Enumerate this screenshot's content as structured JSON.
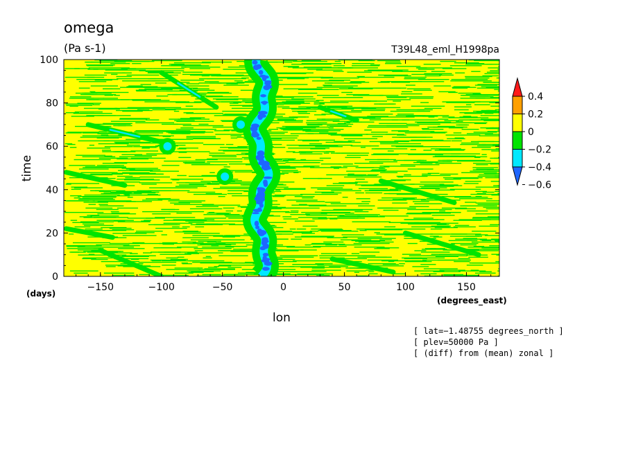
{
  "chart_data": {
    "type": "heatmap",
    "title": "omega",
    "units": "(Pa s-1)",
    "experiment": "T39L48_eml_H1998pa",
    "xlabel": "lon",
    "ylabel": "time",
    "x_units": "(degrees_east)",
    "y_units": "(days)",
    "xlim": [
      -180,
      177
    ],
    "ylim": [
      0,
      100
    ],
    "x_ticks": [
      -150,
      -100,
      -50,
      0,
      50,
      100,
      150
    ],
    "x_tick_labels": [
      "−150",
      "−100",
      "−50",
      "0",
      "50",
      "100",
      "150"
    ],
    "y_ticks": [
      0,
      20,
      40,
      60,
      80,
      100
    ],
    "y_tick_labels": [
      "0",
      "20",
      "40",
      "60",
      "80",
      "100"
    ],
    "colorbar": {
      "levels": [
        -0.6,
        -0.4,
        -0.2,
        0,
        0.2,
        0.4
      ],
      "labels": [
        "−0.6",
        "−0.4",
        "−0.2",
        "0",
        "0.2",
        "0.4"
      ],
      "colors": [
        "#1e66ff",
        "#00e8ff",
        "#00e400",
        "#ffff00",
        "#ffa000",
        "#ff1a1a"
      ]
    },
    "field_colors": {
      "background": "#ffff00",
      "negative_weak": "#00e400",
      "negative_moderate": "#00e8ff",
      "negative_strong": "#1e66ff",
      "positive_moderate": "#ffa000"
    },
    "features": {
      "stationary_negative_band": {
        "lon_center": -18,
        "time_range": [
          0,
          100
        ],
        "peak_value": -0.6
      },
      "diagonal_streaks": [
        {
          "lon_start": -100,
          "time_start": 94,
          "lon_end": -55,
          "time_end": 78
        },
        {
          "lon_start": -160,
          "time_start": 70,
          "lon_end": -100,
          "time_end": 62
        },
        {
          "lon_start": -178,
          "time_start": 48,
          "lon_end": -130,
          "time_end": 42
        },
        {
          "lon_start": -178,
          "time_start": 22,
          "lon_end": -140,
          "time_end": 18
        },
        {
          "lon_start": -150,
          "time_start": 12,
          "lon_end": -100,
          "time_end": 0
        },
        {
          "lon_start": 30,
          "time_start": 78,
          "lon_end": 60,
          "time_end": 72
        },
        {
          "lon_start": 80,
          "time_start": 44,
          "lon_end": 140,
          "time_end": 34
        },
        {
          "lon_start": 100,
          "time_start": 20,
          "lon_end": 160,
          "time_end": 10
        },
        {
          "lon_start": 40,
          "time_start": 8,
          "lon_end": 90,
          "time_end": 2
        }
      ],
      "moderate_patches": [
        {
          "lon": -48,
          "time": 46
        },
        {
          "lon": -35,
          "time": 70
        },
        {
          "lon": -95,
          "time": 60
        }
      ]
    },
    "annotations": [
      "[ lat=−1.48755 degrees_north ]",
      "[ plev=50000 Pa ]",
      "[ (diff) from (mean) zonal ]"
    ]
  }
}
